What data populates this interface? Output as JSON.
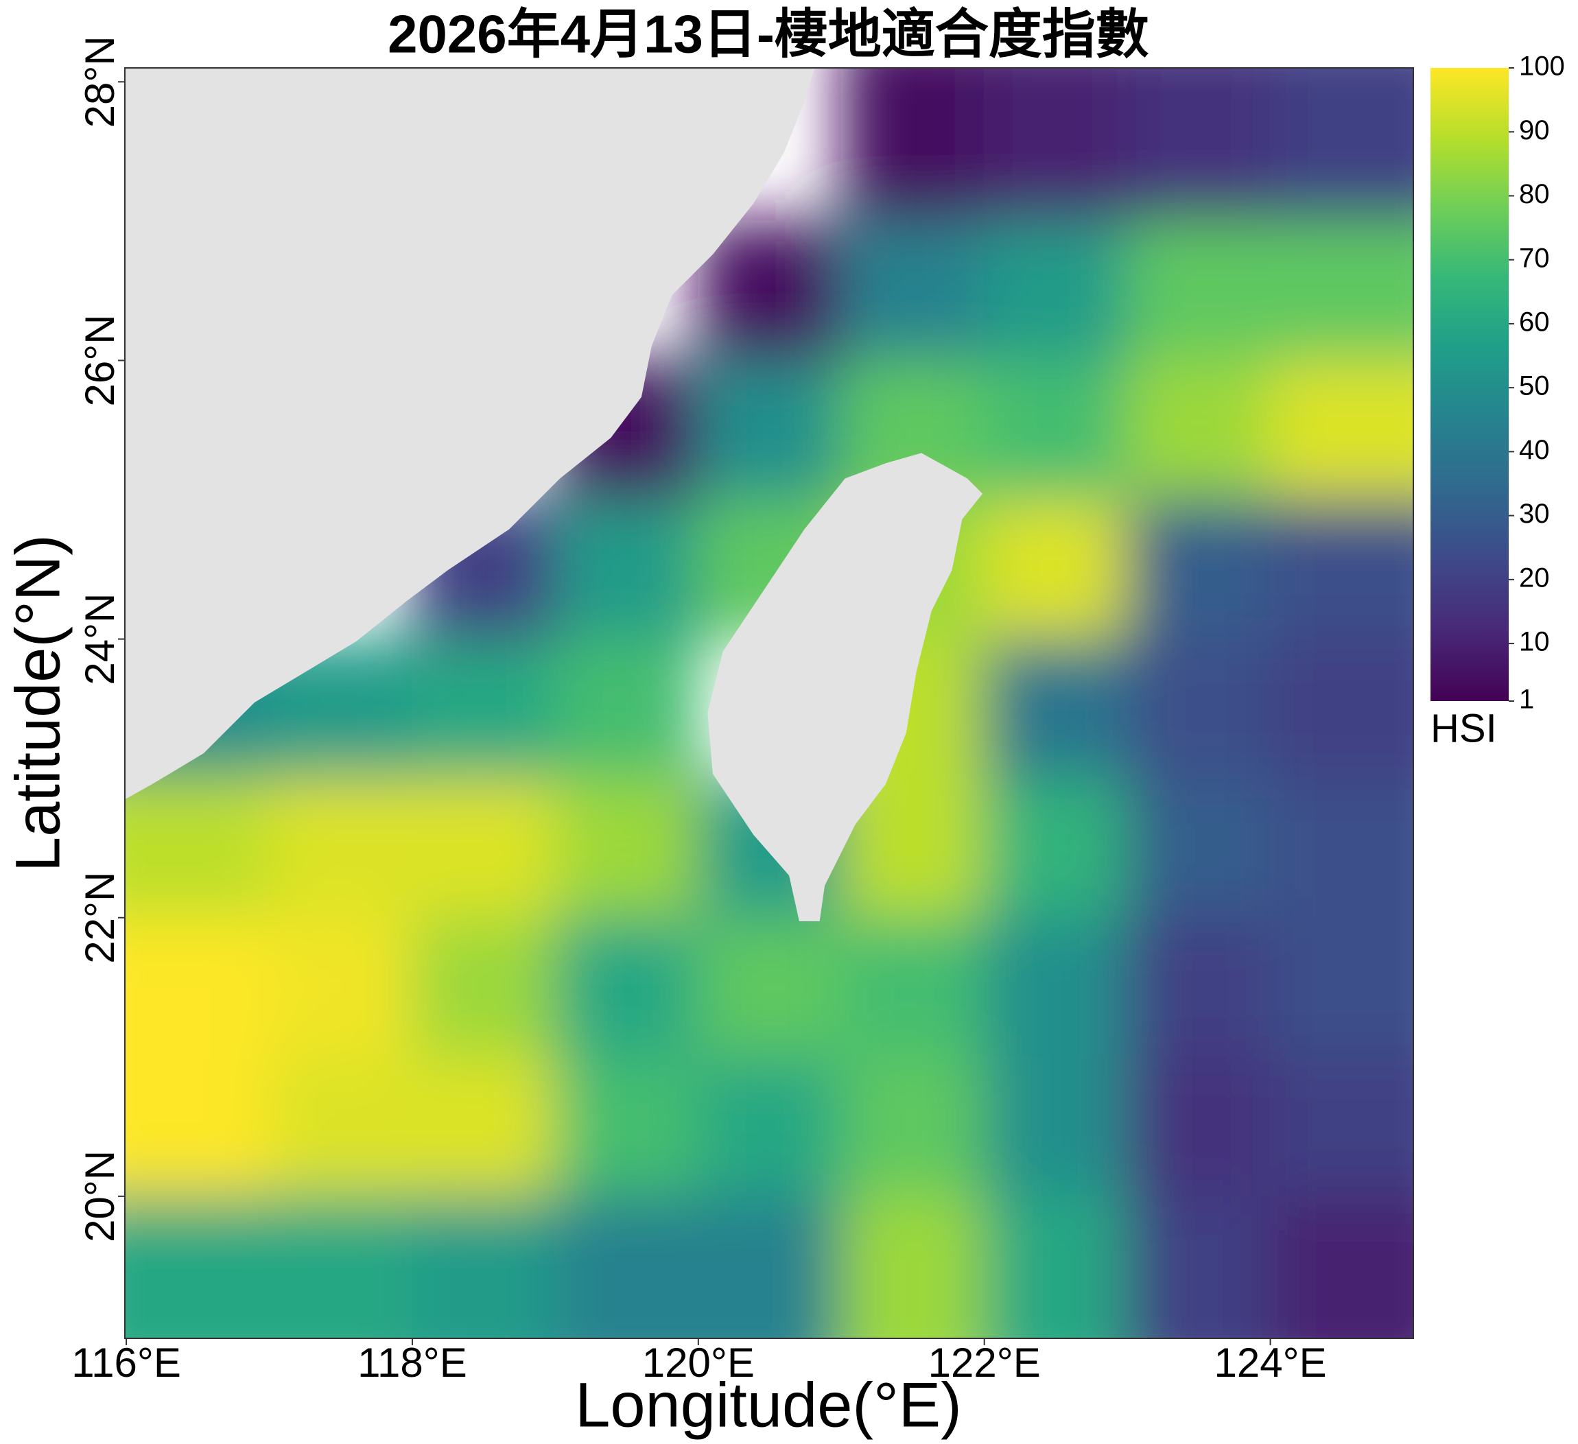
{
  "chart_data": {
    "type": "heatmap",
    "title": "2026年4月13日-棲地適合度指數",
    "x_label": "Longitude(°E)",
    "y_label": "Latitude(°N)",
    "x": [
      116.5,
      117.5,
      118.5,
      119.5,
      120.5,
      121.5,
      122.5,
      123.5,
      124.5
    ],
    "y": [
      27.5,
      26.5,
      25.5,
      24.5,
      23.5,
      22.5,
      21.5,
      20.5,
      19.5
    ],
    "values": [
      [
        null,
        null,
        null,
        null,
        null,
        5,
        10,
        15,
        20
      ],
      [
        null,
        null,
        null,
        null,
        5,
        45,
        55,
        75,
        75
      ],
      [
        null,
        null,
        null,
        5,
        50,
        75,
        70,
        85,
        95
      ],
      [
        null,
        null,
        20,
        55,
        75,
        85,
        95,
        30,
        25
      ],
      [
        50,
        55,
        60,
        70,
        null,
        90,
        40,
        25,
        20
      ],
      [
        90,
        95,
        95,
        85,
        55,
        90,
        65,
        30,
        25
      ],
      [
        100,
        98,
        85,
        60,
        75,
        70,
        50,
        20,
        25
      ],
      [
        100,
        95,
        95,
        70,
        60,
        75,
        50,
        15,
        20
      ],
      [
        60,
        60,
        55,
        45,
        45,
        85,
        60,
        20,
        10
      ]
    ],
    "xlim": [
      115.99,
      125.0
    ],
    "ylim": [
      18.98,
      28.1
    ],
    "xticks": [
      {
        "value": 116,
        "label": "116°E"
      },
      {
        "value": 118,
        "label": "118°E"
      },
      {
        "value": 120,
        "label": "120°E"
      },
      {
        "value": 122,
        "label": "122°E"
      },
      {
        "value": 124,
        "label": "124°E"
      }
    ],
    "yticks": [
      {
        "value": 20,
        "label": "20°N"
      },
      {
        "value": 22,
        "label": "22°N"
      },
      {
        "value": 24,
        "label": "24°N"
      },
      {
        "value": 26,
        "label": "26°N"
      },
      {
        "value": 28,
        "label": "28°N"
      }
    ],
    "colorbar": {
      "label": "HSI",
      "lim": [
        1,
        100
      ],
      "ticks": [
        1,
        10,
        20,
        30,
        40,
        50,
        60,
        70,
        80,
        90,
        100
      ],
      "colors": [
        "#440154",
        "#482878",
        "#3e4989",
        "#31688e",
        "#26828e",
        "#1f9e89",
        "#35b779",
        "#6ece58",
        "#b5de2b",
        "#fde725"
      ]
    },
    "land_color": "#e3e3e3"
  }
}
